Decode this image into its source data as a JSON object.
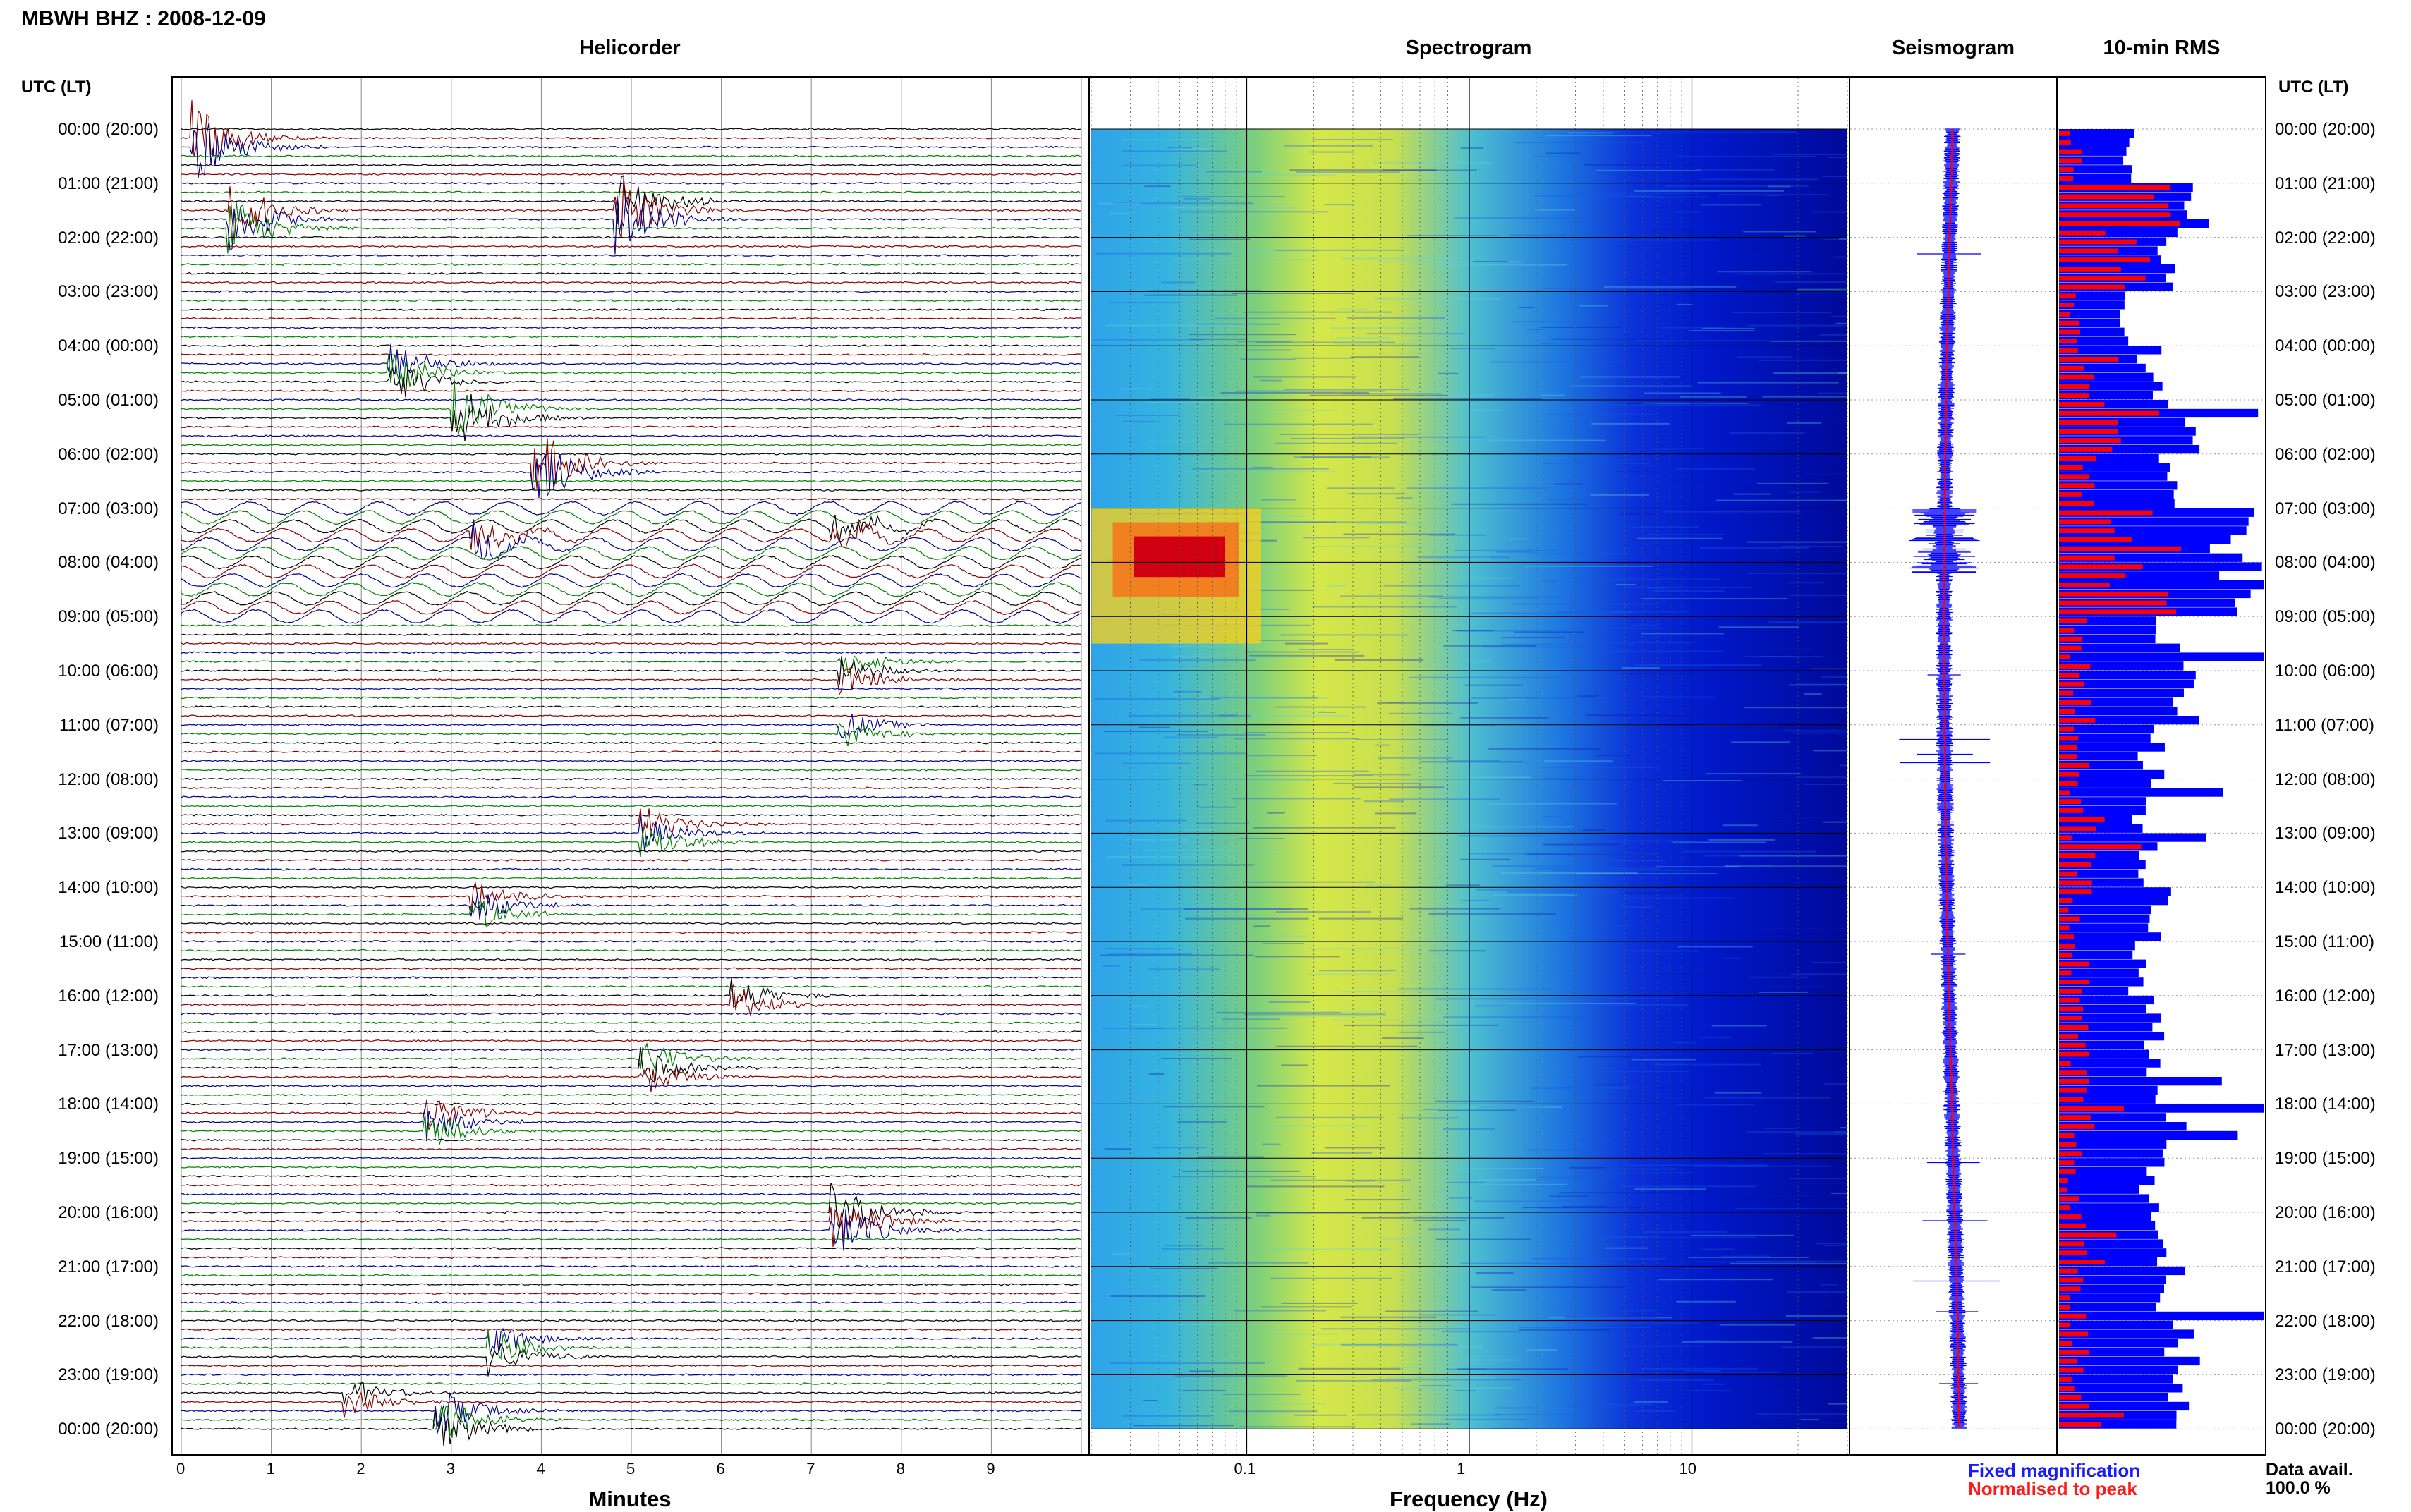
{
  "header": {
    "station_title": "MBWH BHZ : 2008-12-09"
  },
  "panels": {
    "helicorder": "Helicorder",
    "spectrogram": "Spectrogram",
    "seismogram": "Seismogram",
    "rms": "10-min RMS"
  },
  "axis_header_left": "UTC (LT)",
  "axis_header_right": "UTC (LT)",
  "row_labels": [
    "00:00 (20:00)",
    "01:00 (21:00)",
    "02:00 (22:00)",
    "03:00 (23:00)",
    "04:00 (00:00)",
    "05:00 (01:00)",
    "06:00 (02:00)",
    "07:00 (03:00)",
    "08:00 (04:00)",
    "09:00 (05:00)",
    "10:00 (06:00)",
    "11:00 (07:00)",
    "12:00 (08:00)",
    "13:00 (09:00)",
    "14:00 (10:00)",
    "15:00 (11:00)",
    "16:00 (12:00)",
    "17:00 (13:00)",
    "18:00 (14:00)",
    "19:00 (15:00)",
    "20:00 (16:00)",
    "21:00 (17:00)",
    "22:00 (18:00)",
    "23:00 (19:00)",
    "00:00 (20:00)"
  ],
  "helicorder_xlabel": "Minutes",
  "helicorder_ticks": [
    "0",
    "1",
    "2",
    "3",
    "4",
    "5",
    "6",
    "7",
    "8",
    "9"
  ],
  "spectrogram_xlabel": "Frequency (Hz)",
  "spectrogram_ticks": [
    "0.1",
    "1",
    "10"
  ],
  "legend": {
    "fixed": "Fixed magnification",
    "normalised": "Normalised to peak"
  },
  "data_avail": {
    "label": "Data avail.",
    "value": "100.0 %"
  },
  "colors": {
    "trace_red": "#8b0000",
    "trace_green": "#008000",
    "trace_blue": "#00008b",
    "trace_black": "#000000",
    "spec_low": "#0000cc",
    "spec_high": "#ff0000",
    "rms_blue": "#0000ff",
    "rms_red": "#ff0000"
  },
  "chart_data": [
    {
      "type": "line",
      "title": "Helicorder",
      "xlabel": "Minutes",
      "xlim": [
        0,
        10
      ],
      "rows_per_hour": 6,
      "trace_color_cycle": [
        "black",
        "red",
        "blue",
        "green"
      ],
      "events": [
        {
          "hour": 0.3,
          "minute": 0.1,
          "amplitude": 1.0,
          "color": "red"
        },
        {
          "hour": 1.7,
          "minute": 0.5,
          "amplitude": 0.9,
          "color": "green"
        },
        {
          "hour": 1.5,
          "minute": 4.8,
          "amplitude": 1.0,
          "color": "blue"
        },
        {
          "hour": 4.5,
          "minute": 2.3,
          "amplitude": 0.6,
          "color": "blue"
        },
        {
          "hour": 5.2,
          "minute": 3.0,
          "amplitude": 1.0,
          "color": "green"
        },
        {
          "hour": 6.3,
          "minute": 3.9,
          "amplitude": 1.0,
          "color": "green"
        },
        {
          "hour": 7.6,
          "minute": 3.2,
          "amplitude": 0.5,
          "color": "red"
        },
        {
          "hour": 7.4,
          "minute": 7.2,
          "amplitude": 0.5,
          "color": "black"
        },
        {
          "hour": 10.0,
          "minute": 7.3,
          "amplitude": 0.4,
          "color": "black"
        },
        {
          "hour": 11.1,
          "minute": 7.3,
          "amplitude": 0.4,
          "color": "green"
        },
        {
          "hour": 13.0,
          "minute": 5.1,
          "amplitude": 0.5,
          "color": "black"
        },
        {
          "hour": 14.3,
          "minute": 3.2,
          "amplitude": 0.5,
          "color": "red"
        },
        {
          "hour": 16.1,
          "minute": 6.1,
          "amplitude": 0.5,
          "color": "red"
        },
        {
          "hour": 17.3,
          "minute": 5.1,
          "amplitude": 0.5,
          "color": "black"
        },
        {
          "hour": 18.3,
          "minute": 2.7,
          "amplitude": 0.5,
          "color": "blue"
        },
        {
          "hour": 20.2,
          "minute": 7.2,
          "amplitude": 0.8,
          "color": "blue"
        },
        {
          "hour": 22.5,
          "minute": 3.4,
          "amplitude": 0.5,
          "color": "green"
        },
        {
          "hour": 23.4,
          "minute": 1.8,
          "amplitude": 0.4,
          "color": "black"
        },
        {
          "hour": 23.8,
          "minute": 2.8,
          "amplitude": 0.7,
          "color": "green"
        }
      ]
    },
    {
      "type": "heatmap",
      "title": "Spectrogram",
      "xlabel": "Frequency (Hz)",
      "xscale": "log",
      "xlim": [
        0.02,
        50
      ],
      "xticks": [
        0.1,
        1,
        10
      ],
      "ylim_hours": [
        0,
        24
      ],
      "features": [
        {
          "name": "high energy",
          "freq_range": [
            0.025,
            0.08
          ],
          "hour_range": [
            7.0,
            9.5
          ]
        },
        {
          "name": "microseism band",
          "freq_range": [
            0.15,
            0.6
          ]
        }
      ]
    },
    {
      "type": "line",
      "title": "Seismogram",
      "series": [
        {
          "name": "Fixed magnification",
          "color": "blue"
        },
        {
          "name": "Normalised to peak",
          "color": "red"
        }
      ]
    },
    {
      "type": "bar",
      "title": "10-min RMS",
      "orientation": "horizontal",
      "hours": [
        0,
        1,
        2,
        3,
        4,
        5,
        6,
        7,
        8,
        9,
        10,
        11,
        12,
        13,
        14,
        15,
        16,
        17,
        18,
        19,
        20,
        21,
        22,
        23
      ],
      "fixed_magnification": [
        0.33,
        0.65,
        0.55,
        0.32,
        0.45,
        0.6,
        0.55,
        0.85,
        0.9,
        0.55,
        0.6,
        0.45,
        0.4,
        0.45,
        0.5,
        0.38,
        0.45,
        0.5,
        0.55,
        0.45,
        0.52,
        0.55,
        0.6,
        0.62
      ],
      "normalised_to_peak": [
        0.1,
        0.4,
        0.3,
        0.1,
        0.12,
        0.35,
        0.15,
        0.4,
        0.45,
        0.1,
        0.12,
        0.1,
        0.08,
        0.12,
        0.08,
        0.08,
        0.1,
        0.1,
        0.12,
        0.08,
        0.2,
        0.1,
        0.1,
        0.12
      ]
    }
  ]
}
